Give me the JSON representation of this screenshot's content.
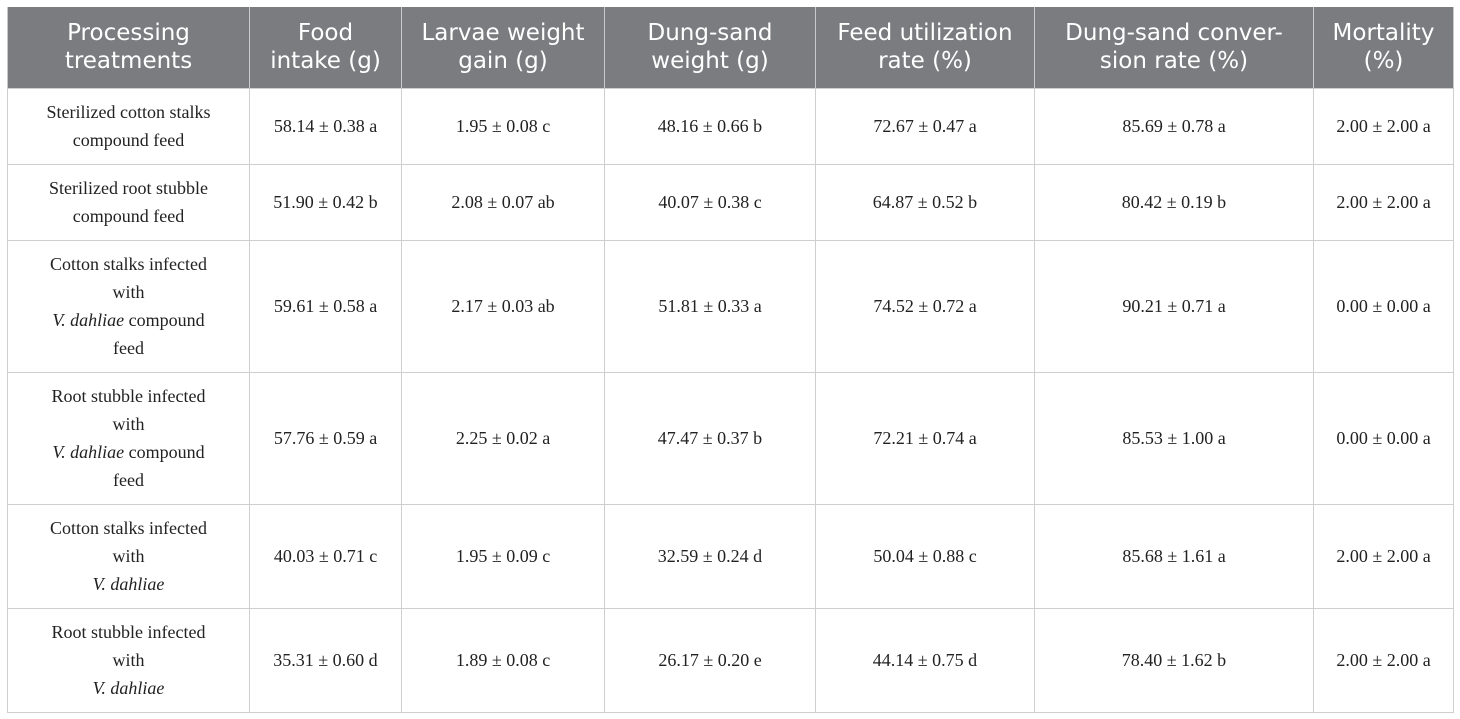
{
  "table": {
    "headers": [
      [
        "Processing",
        "treatments"
      ],
      [
        "Food",
        "intake (g)"
      ],
      [
        "Larvae weight",
        "gain (g)"
      ],
      [
        "Dung-sand",
        "weight (g)"
      ],
      [
        "Feed utilization",
        "rate (%)"
      ],
      [
        "Dung-sand conver-",
        "sion rate (%)"
      ],
      [
        "Mortality",
        "(%)"
      ]
    ],
    "rows": [
      {
        "treatment": [
          {
            "text": "Sterilized cotton stalks",
            "italic": false
          },
          {
            "text": "compound feed",
            "italic": false
          }
        ],
        "values": [
          "58.14 ± 0.38 a",
          "1.95 ± 0.08 c",
          "48.16 ± 0.66 b",
          "72.67 ± 0.47 a",
          "85.69 ± 0.78 a",
          "2.00 ± 2.00 a"
        ]
      },
      {
        "treatment": [
          {
            "text": "Sterilized root stubble",
            "italic": false
          },
          {
            "text": "compound feed",
            "italic": false
          }
        ],
        "values": [
          "51.90 ± 0.42 b",
          "2.08 ± 0.07 ab",
          "40.07 ± 0.38 c",
          "64.87 ± 0.52 b",
          "80.42 ± 0.19 b",
          "2.00 ± 2.00 a"
        ]
      },
      {
        "treatment": [
          {
            "text": "Cotton stalks infected",
            "italic": false
          },
          {
            "text": "with",
            "italic": false
          },
          {
            "text": "V. dahliae",
            "italic": true,
            "suffix": " compound"
          },
          {
            "text": "feed",
            "italic": false
          }
        ],
        "values": [
          "59.61 ± 0.58 a",
          "2.17 ± 0.03 ab",
          "51.81 ± 0.33 a",
          "74.52 ± 0.72 a",
          "90.21 ± 0.71 a",
          "0.00 ± 0.00 a"
        ]
      },
      {
        "treatment": [
          {
            "text": "Root stubble infected",
            "italic": false
          },
          {
            "text": "with",
            "italic": false
          },
          {
            "text": "V. dahliae",
            "italic": true,
            "suffix": " compound"
          },
          {
            "text": "feed",
            "italic": false
          }
        ],
        "values": [
          "57.76 ± 0.59 a",
          "2.25 ± 0.02 a",
          "47.47 ± 0.37 b",
          "72.21 ± 0.74 a",
          "85.53 ± 1.00 a",
          "0.00 ± 0.00 a"
        ]
      },
      {
        "treatment": [
          {
            "text": "Cotton stalks infected",
            "italic": false
          },
          {
            "text": "with",
            "italic": false
          },
          {
            "text": "V. dahliae",
            "italic": true
          }
        ],
        "values": [
          "40.03 ± 0.71 c",
          "1.95 ± 0.09 c",
          "32.59 ± 0.24 d",
          "50.04 ± 0.88 c",
          "85.68 ± 1.61 a",
          "2.00 ± 2.00 a"
        ]
      },
      {
        "treatment": [
          {
            "text": "Root stubble infected",
            "italic": false
          },
          {
            "text": "with",
            "italic": false
          },
          {
            "text": "V. dahliae",
            "italic": true
          }
        ],
        "values": [
          "35.31 ± 0.60 d",
          "1.89 ± 0.08 c",
          "26.17 ± 0.20 e",
          "44.14 ± 0.75 d",
          "78.40 ± 1.62 b",
          "2.00 ± 2.00 a"
        ]
      }
    ]
  },
  "colors": {
    "header_bg": "#7b7c7f",
    "header_text": "#ffffff",
    "grid": "#cfcfcf",
    "body_text": "#222222"
  }
}
